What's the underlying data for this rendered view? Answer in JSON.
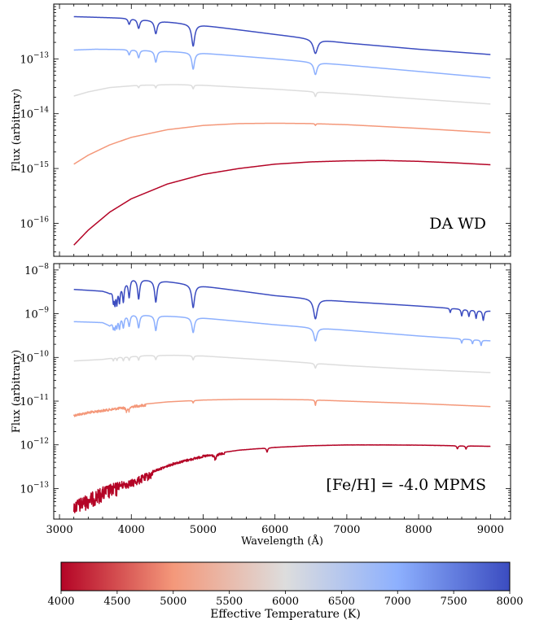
{
  "chart_data": [
    {
      "type": "line",
      "annotation": "DA WD",
      "xlabel": "",
      "ylabel": "Flux  (arbitrary)",
      "xlim": [
        2920,
        9280
      ],
      "ylim": [
        2.5e-17,
        1e-12
      ],
      "yscale": "log",
      "xticks": [
        3000,
        4000,
        5000,
        6000,
        7000,
        8000,
        9000
      ],
      "yticks": [
        {
          "value": 1e-16,
          "base": "10",
          "exp": "−16"
        },
        {
          "value": 1e-15,
          "base": "10",
          "exp": "−15"
        },
        {
          "value": 1e-14,
          "base": "10",
          "exp": "−14"
        },
        {
          "value": 1e-13,
          "base": "10",
          "exp": "−13"
        }
      ],
      "series": [
        {
          "temperature": 8000,
          "color": "#3b4cc0",
          "points": [
            [
              3200,
              5.9e-13
            ],
            [
              4000,
              5.5e-13
            ],
            [
              5000,
              4.1e-13
            ],
            [
              6000,
              2.8e-13
            ],
            [
              7000,
              1.95e-13
            ],
            [
              8000,
              1.5e-13
            ],
            [
              9000,
              1.2e-13
            ]
          ],
          "lines": [
            {
              "x": 3970,
              "w": 18,
              "d": 0.78
            },
            {
              "x": 4102,
              "w": 22,
              "d": 0.68
            },
            {
              "x": 4341,
              "w": 26,
              "d": 0.58
            },
            {
              "x": 4861,
              "w": 32,
              "d": 0.4
            },
            {
              "x": 6563,
              "w": 42,
              "d": 0.55
            }
          ]
        },
        {
          "temperature": 7000,
          "color": "#8db0fe",
          "points": [
            [
              3200,
              1.45e-13
            ],
            [
              3500,
              1.5e-13
            ],
            [
              4000,
              1.48e-13
            ],
            [
              5000,
              1.27e-13
            ],
            [
              6000,
              1e-13
            ],
            [
              7000,
              7.7e-14
            ],
            [
              8000,
              5.9e-14
            ],
            [
              9000,
              4.5e-14
            ]
          ],
          "lines": [
            {
              "x": 3970,
              "w": 16,
              "d": 0.8
            },
            {
              "x": 4102,
              "w": 18,
              "d": 0.72
            },
            {
              "x": 4341,
              "w": 22,
              "d": 0.62
            },
            {
              "x": 4861,
              "w": 26,
              "d": 0.5
            },
            {
              "x": 6563,
              "w": 30,
              "d": 0.6
            }
          ]
        },
        {
          "temperature": 6000,
          "color": "#dddddd",
          "points": [
            [
              3200,
              2.1e-14
            ],
            [
              3400,
              2.5e-14
            ],
            [
              3700,
              3e-14
            ],
            [
              4100,
              3.3e-14
            ],
            [
              4600,
              3.4e-14
            ],
            [
              5000,
              3.3e-14
            ],
            [
              6000,
              2.8e-14
            ],
            [
              7000,
              2.3e-14
            ],
            [
              8000,
              1.85e-14
            ],
            [
              9000,
              1.5e-14
            ]
          ],
          "lines": [
            {
              "x": 4102,
              "w": 10,
              "d": 0.9
            },
            {
              "x": 4341,
              "w": 10,
              "d": 0.88
            },
            {
              "x": 4861,
              "w": 12,
              "d": 0.85
            },
            {
              "x": 6563,
              "w": 14,
              "d": 0.82
            }
          ]
        },
        {
          "temperature": 5000,
          "color": "#f4987a",
          "points": [
            [
              3200,
              1.2e-15
            ],
            [
              3400,
              1.75e-15
            ],
            [
              3700,
              2.7e-15
            ],
            [
              4000,
              3.7e-15
            ],
            [
              4500,
              5.1e-15
            ],
            [
              5000,
              6.1e-15
            ],
            [
              5500,
              6.6e-15
            ],
            [
              6000,
              6.7e-15
            ],
            [
              6500,
              6.6e-15
            ],
            [
              7000,
              6.3e-15
            ],
            [
              8000,
              5.4e-15
            ],
            [
              9000,
              4.5e-15
            ]
          ],
          "lines": [
            {
              "x": 6563,
              "w": 8,
              "d": 0.93
            }
          ]
        },
        {
          "temperature": 4000,
          "color": "#b40426",
          "points": [
            [
              3200,
              4e-17
            ],
            [
              3400,
              7.5e-17
            ],
            [
              3700,
              1.6e-16
            ],
            [
              4000,
              2.8e-16
            ],
            [
              4500,
              5.2e-16
            ],
            [
              5000,
              7.8e-16
            ],
            [
              5500,
              1e-15
            ],
            [
              6000,
              1.2e-15
            ],
            [
              6500,
              1.32e-15
            ],
            [
              7000,
              1.38e-15
            ],
            [
              7500,
              1.4e-15
            ],
            [
              8000,
              1.35e-15
            ],
            [
              8500,
              1.27e-15
            ],
            [
              9000,
              1.17e-15
            ]
          ],
          "lines": []
        }
      ]
    },
    {
      "type": "line",
      "annotation": "[Fe/H] = -4.0 MPMS",
      "xlabel": "Wavelength (Å)",
      "ylabel": "Flux  (arbitrary)",
      "xlim": [
        2920,
        9280
      ],
      "ylim": [
        2e-14,
        1.4e-08
      ],
      "yscale": "log",
      "xticks": [
        3000,
        4000,
        5000,
        6000,
        7000,
        8000,
        9000
      ],
      "yticks": [
        {
          "value": 1e-13,
          "base": "10",
          "exp": "−13"
        },
        {
          "value": 1e-12,
          "base": "10",
          "exp": "−12"
        },
        {
          "value": 1e-11,
          "base": "10",
          "exp": "−11"
        },
        {
          "value": 1e-10,
          "base": "10",
          "exp": "−10"
        },
        {
          "value": 1e-09,
          "base": "10",
          "exp": "−9"
        },
        {
          "value": 1e-08,
          "base": "10",
          "exp": "−8"
        }
      ],
      "series": [
        {
          "temperature": 8000,
          "color": "#3b4cc0",
          "points": [
            [
              3200,
              3.6e-09
            ],
            [
              3600,
              3.3e-09
            ],
            [
              3700,
              3e-09
            ],
            [
              4000,
              6.5e-09
            ],
            [
              4500,
              5.5e-09
            ],
            [
              5000,
              4.3e-09
            ],
            [
              6000,
              2.6e-09
            ],
            [
              7000,
              1.9e-09
            ],
            [
              8000,
              1.5e-09
            ],
            [
              9000,
              1.15e-09
            ]
          ],
          "lines": [
            {
              "x": 3750,
              "w": 10,
              "d": 0.55
            },
            {
              "x": 3771,
              "w": 10,
              "d": 0.5
            },
            {
              "x": 3798,
              "w": 12,
              "d": 0.45
            },
            {
              "x": 3835,
              "w": 14,
              "d": 0.45
            },
            {
              "x": 3889,
              "w": 16,
              "d": 0.4
            },
            {
              "x": 3970,
              "w": 18,
              "d": 0.4
            },
            {
              "x": 4102,
              "w": 22,
              "d": 0.35
            },
            {
              "x": 4341,
              "w": 26,
              "d": 0.32
            },
            {
              "x": 4861,
              "w": 32,
              "d": 0.3
            },
            {
              "x": 6563,
              "w": 40,
              "d": 0.35
            },
            {
              "x": 8440,
              "w": 10,
              "d": 0.8
            },
            {
              "x": 8600,
              "w": 12,
              "d": 0.7
            },
            {
              "x": 8700,
              "w": 12,
              "d": 0.7
            },
            {
              "x": 8800,
              "w": 12,
              "d": 0.65
            },
            {
              "x": 8900,
              "w": 14,
              "d": 0.6
            }
          ]
        },
        {
          "temperature": 7000,
          "color": "#8db0fe",
          "points": [
            [
              3200,
              6.6e-10
            ],
            [
              3600,
              6.3e-10
            ],
            [
              3700,
              5.4e-10
            ],
            [
              3800,
              8.5e-10
            ],
            [
              4000,
              9.8e-10
            ],
            [
              5000,
              8e-10
            ],
            [
              6000,
              5.6e-10
            ],
            [
              7000,
              4.2e-10
            ],
            [
              8000,
              3.1e-10
            ],
            [
              9000,
              2.4e-10
            ]
          ],
          "lines": [
            {
              "x": 3750,
              "w": 10,
              "d": 0.7
            },
            {
              "x": 3771,
              "w": 10,
              "d": 0.65
            },
            {
              "x": 3798,
              "w": 12,
              "d": 0.6
            },
            {
              "x": 3835,
              "w": 14,
              "d": 0.55
            },
            {
              "x": 3889,
              "w": 16,
              "d": 0.55
            },
            {
              "x": 3970,
              "w": 18,
              "d": 0.55
            },
            {
              "x": 4102,
              "w": 20,
              "d": 0.5
            },
            {
              "x": 4341,
              "w": 22,
              "d": 0.45
            },
            {
              "x": 4861,
              "w": 26,
              "d": 0.45
            },
            {
              "x": 6563,
              "w": 30,
              "d": 0.5
            },
            {
              "x": 8600,
              "w": 10,
              "d": 0.8
            },
            {
              "x": 8750,
              "w": 10,
              "d": 0.8
            },
            {
              "x": 8870,
              "w": 10,
              "d": 0.75
            }
          ]
        },
        {
          "temperature": 6000,
          "color": "#dddddd",
          "points": [
            [
              3200,
              8.3e-11
            ],
            [
              3600,
              9e-11
            ],
            [
              3800,
              1e-10
            ],
            [
              4200,
              1.1e-10
            ],
            [
              4600,
              1.12e-10
            ],
            [
              5000,
              1.08e-10
            ],
            [
              6000,
              8.5e-11
            ],
            [
              7000,
              6.5e-11
            ],
            [
              8000,
              5.3e-11
            ],
            [
              9000,
              4.5e-11
            ]
          ],
          "lines": [
            {
              "x": 3750,
              "w": 8,
              "d": 0.85
            },
            {
              "x": 3800,
              "w": 8,
              "d": 0.85
            },
            {
              "x": 3889,
              "w": 10,
              "d": 0.82
            },
            {
              "x": 3970,
              "w": 10,
              "d": 0.82
            },
            {
              "x": 4102,
              "w": 10,
              "d": 0.8
            },
            {
              "x": 4341,
              "w": 12,
              "d": 0.8
            },
            {
              "x": 4861,
              "w": 12,
              "d": 0.8
            },
            {
              "x": 6563,
              "w": 14,
              "d": 0.78
            }
          ]
        },
        {
          "temperature": 5000,
          "color": "#f4987a",
          "points": [
            [
              3200,
              5e-12
            ],
            [
              3400,
              5.8e-12
            ],
            [
              3700,
              6.8e-12
            ],
            [
              4000,
              8e-12
            ],
            [
              4500,
              9.6e-12
            ],
            [
              5000,
              1.06e-11
            ],
            [
              5500,
              1.1e-11
            ],
            [
              6000,
              1.1e-11
            ],
            [
              6500,
              1.07e-11
            ],
            [
              7000,
              1e-11
            ],
            [
              8000,
              8.8e-12
            ],
            [
              9000,
              7.5e-12
            ]
          ],
          "lines": [
            {
              "x": 3933,
              "w": 10,
              "d": 0.8
            },
            {
              "x": 3968,
              "w": 10,
              "d": 0.8
            },
            {
              "x": 4861,
              "w": 8,
              "d": 0.88
            },
            {
              "x": 6563,
              "w": 8,
              "d": 0.75
            }
          ]
        },
        {
          "temperature": 4000,
          "color": "#b40426",
          "points": [
            [
              3200,
              5.2e-14
            ],
            [
              3400,
              7.5e-14
            ],
            [
              3600,
              1.1e-13
            ],
            [
              3800,
              1.4e-13
            ],
            [
              4000,
              1.6e-13
            ],
            [
              4300,
              2.6e-13
            ],
            [
              4600,
              4e-13
            ],
            [
              5000,
              5.8e-13
            ],
            [
              5500,
              7.6e-13
            ],
            [
              6000,
              8.8e-13
            ],
            [
              6500,
              9.6e-13
            ],
            [
              7000,
              1e-12
            ],
            [
              7500,
              1e-12
            ],
            [
              8000,
              9.9e-13
            ],
            [
              9000,
              9.3e-13
            ]
          ],
          "lines": [
            {
              "x": 5170,
              "w": 14,
              "d": 0.75
            },
            {
              "x": 5890,
              "w": 10,
              "d": 0.8
            },
            {
              "x": 8540,
              "w": 10,
              "d": 0.85
            },
            {
              "x": 8660,
              "w": 10,
              "d": 0.85
            }
          ]
        }
      ]
    },
    {
      "type": "heatmap",
      "title": "Effective Temperature (K)",
      "colormap": "coolwarm_r",
      "range": [
        4000,
        8000
      ],
      "ticks": [
        4000,
        4500,
        5000,
        5500,
        6000,
        6500,
        7000,
        7500,
        8000
      ],
      "stops": [
        "#b40426",
        "#f4987a",
        "#dddddd",
        "#8db0fe",
        "#3b4cc0"
      ]
    }
  ]
}
